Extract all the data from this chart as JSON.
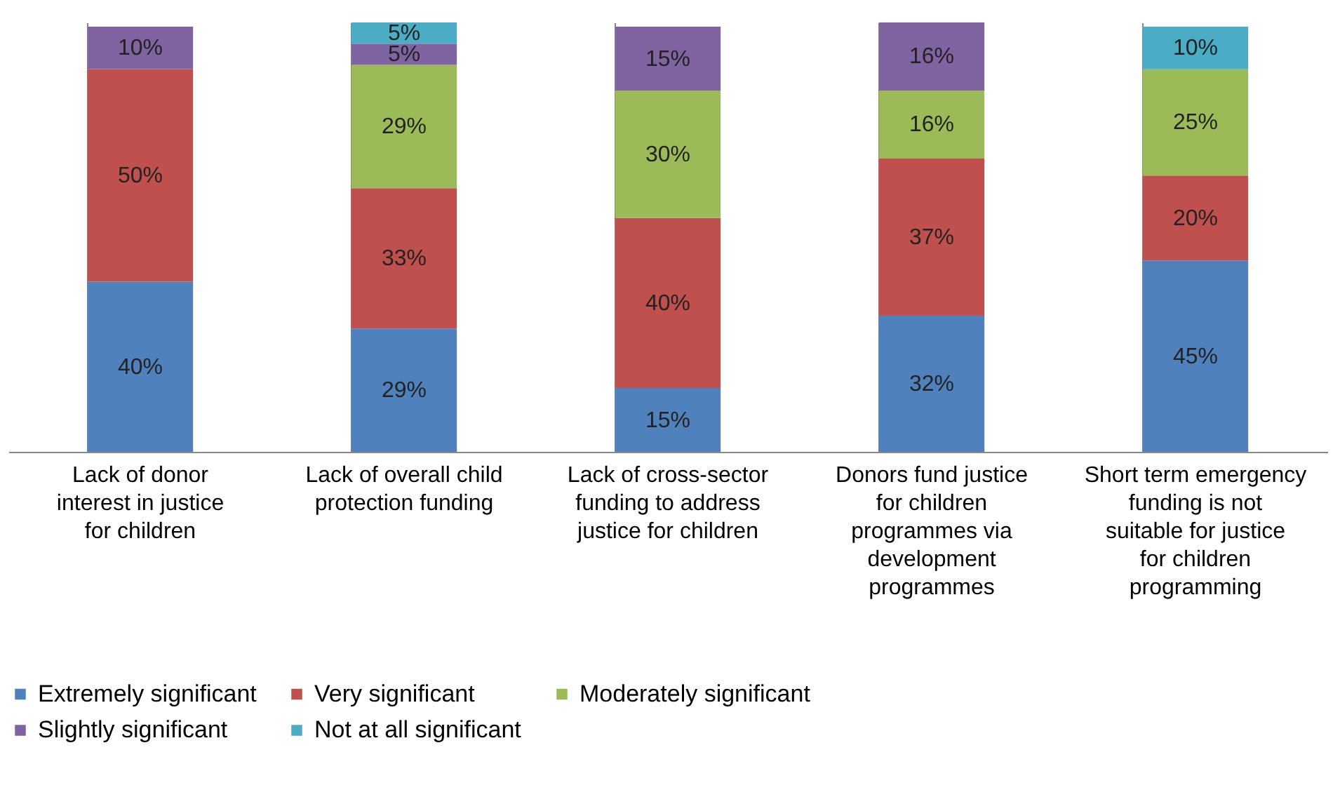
{
  "chart_data": {
    "type": "bar",
    "stacked": true,
    "grid": "x",
    "legend": "bottom",
    "tick_labels": "x",
    "categories": [
      "Lack of donor interest in justice for children",
      "Lack of overall child protection funding",
      "Lack of cross-sector funding to address justice for children",
      "Donors fund justice for children programmes via development programmes",
      "Short term emergency funding is not suitable for justice for children programming"
    ],
    "series": [
      {
        "name": "Extremely significant",
        "color": "#4f81bd",
        "values": [
          40,
          29,
          15,
          32,
          45
        ],
        "value_labels": [
          "40%",
          "29%",
          "15%",
          "32%",
          "45%"
        ]
      },
      {
        "name": "Very significant",
        "color": "#c0504d",
        "values": [
          50,
          33,
          40,
          37,
          20
        ],
        "value_labels": [
          "50%",
          "33%",
          "40%",
          "37%",
          "20%"
        ]
      },
      {
        "name": "Moderately significant",
        "color": "#9bbb59",
        "values": [
          null,
          29,
          30,
          16,
          25
        ],
        "value_labels": [
          null,
          "29%",
          "30%",
          "16%",
          "25%"
        ]
      },
      {
        "name": "Slightly significant",
        "color": "#8064a2",
        "values": [
          10,
          5,
          15,
          16,
          null
        ],
        "value_labels": [
          "10%",
          "5%",
          "15%",
          "16%",
          null
        ]
      },
      {
        "name": "Not at all significant",
        "color": "#4bacc6",
        "values": [
          null,
          5,
          null,
          null,
          10
        ],
        "value_labels": [
          null,
          "5%",
          null,
          null,
          "10%"
        ]
      }
    ]
  }
}
